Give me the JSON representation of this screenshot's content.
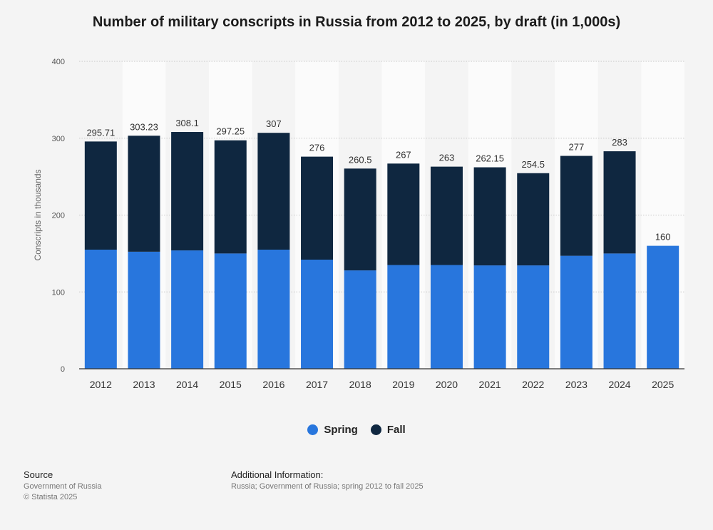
{
  "chart_data": {
    "type": "bar",
    "stacked": true,
    "title": "Number of military conscripts in Russia from 2012 to 2025, by draft (in 1,000s)",
    "xlabel": "",
    "ylabel": "Conscripts in thousands",
    "ylim": [
      0,
      400
    ],
    "yticks": [
      0,
      100,
      200,
      300,
      400
    ],
    "categories": [
      "2012",
      "2013",
      "2014",
      "2015",
      "2016",
      "2017",
      "2018",
      "2019",
      "2020",
      "2021",
      "2022",
      "2023",
      "2024",
      "2025"
    ],
    "series": [
      {
        "name": "Spring",
        "color": "#2876dd",
        "values": [
          155,
          152.3,
          154,
          150,
          155,
          142,
          128,
          135,
          135,
          134.5,
          134.5,
          147,
          150,
          160
        ]
      },
      {
        "name": "Fall",
        "color": "#0f2740",
        "values": [
          140.71,
          150.93,
          154.1,
          147.25,
          152,
          134,
          132.5,
          132,
          128,
          127.65,
          120,
          130,
          133,
          null
        ]
      }
    ],
    "totals": [
      "295.71",
      "303.23",
      "308.1",
      "297.25",
      "307",
      "276",
      "260.5",
      "267",
      "263",
      "262.15",
      "254.5",
      "277",
      "283",
      "160"
    ],
    "legend": "bottom-center",
    "grid": true
  },
  "footer": {
    "source_label": "Source",
    "source_lines": [
      "Government of Russia",
      "© Statista 2025"
    ],
    "info_label": "Additional Information:",
    "info_text": "Russia; Government of Russia; spring 2012 to fall 2025"
  }
}
